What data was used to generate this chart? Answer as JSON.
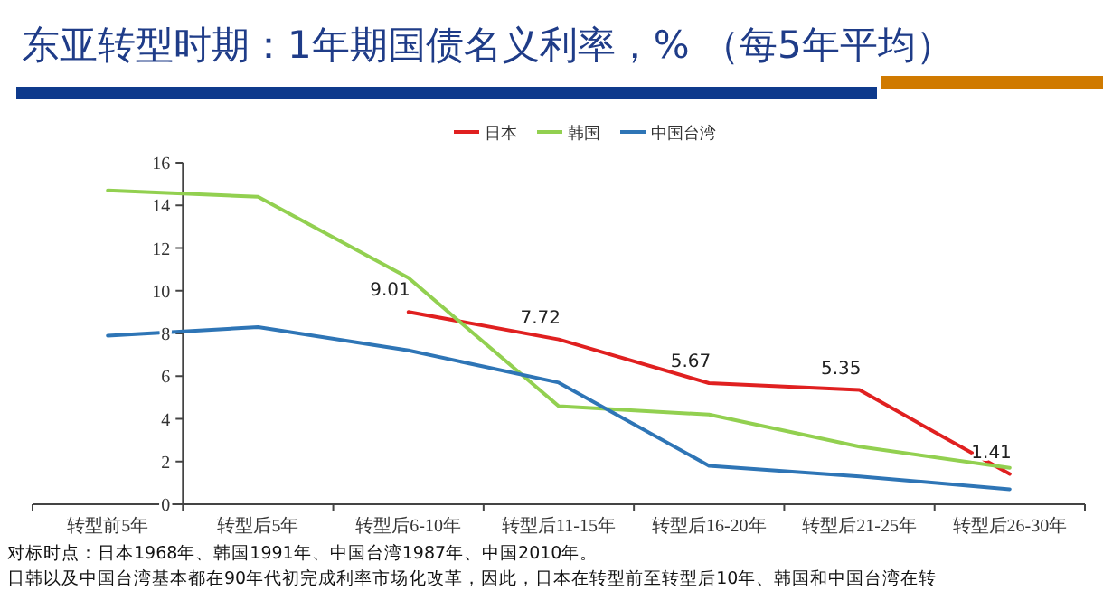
{
  "chart_data": {
    "type": "line",
    "title": "东亚转型时期：1年期国债名义利率，% （每5年平均）",
    "categories": [
      "转型前5年",
      "转型后5年",
      "转型后6-10年",
      "转型后11-15年",
      "转型后16-20年",
      "转型后21-25年",
      "转型后26-30年"
    ],
    "series": [
      {
        "name": "日本",
        "color": "#e02020",
        "values": [
          null,
          null,
          9.01,
          7.72,
          5.67,
          5.35,
          1.41
        ],
        "value_labels": [
          null,
          null,
          "9.01",
          "7.72",
          "5.67",
          "5.35",
          "1.41"
        ]
      },
      {
        "name": "韩国",
        "color": "#92d050",
        "values": [
          14.7,
          14.4,
          10.6,
          4.6,
          4.2,
          2.7,
          1.7
        ]
      },
      {
        "name": "中国台湾",
        "color": "#2e75b6",
        "values": [
          7.9,
          8.3,
          7.2,
          5.7,
          1.8,
          1.3,
          0.7
        ]
      }
    ],
    "ylim": [
      0,
      16
    ],
    "yticks": [
      0,
      2,
      4,
      6,
      8,
      10,
      12,
      14,
      16
    ],
    "legend": "top",
    "annotations": [
      "对标时点：日本1968年、韩国1991年、中国台湾1987年、中国2010年。",
      "日韩以及中国台湾基本都在90年代初完成利率市场化改革，因此，日本在转型前至转型后10年、韩国和中国台湾在转"
    ]
  }
}
